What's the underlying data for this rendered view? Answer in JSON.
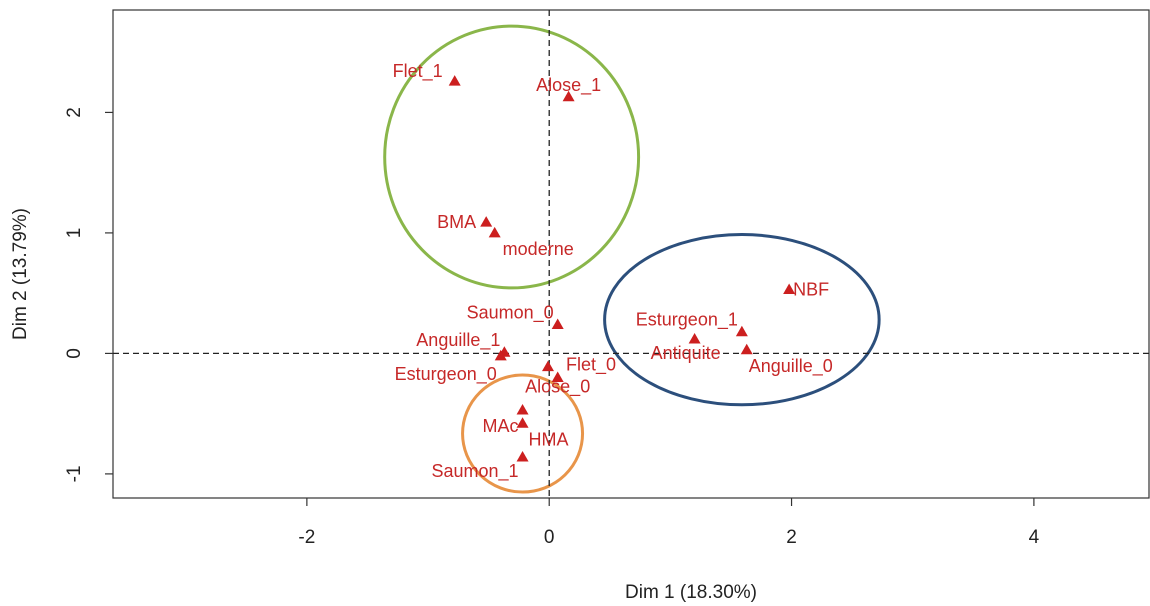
{
  "chart_data": {
    "type": "scatter",
    "xlabel": "Dim 1 (18.30%)",
    "ylabel": "Dim 2 (13.79%)",
    "xlim": [
      -3.6,
      4.95
    ],
    "ylim": [
      -1.2,
      2.85
    ],
    "xticks": [
      -2,
      0,
      2,
      4
    ],
    "yticks": [
      -1,
      0,
      1,
      2
    ],
    "reference_lines": {
      "x": 0,
      "y": 0,
      "style": "dashed"
    },
    "grid": false,
    "marker": "triangle",
    "marker_color": "#cc1f1f",
    "points": [
      {
        "label": "Flet_1",
        "x": -0.78,
        "y": 2.26
      },
      {
        "label": "Alose_1",
        "x": 0.16,
        "y": 2.13
      },
      {
        "label": "BMA",
        "x": -0.52,
        "y": 1.09
      },
      {
        "label": "moderne",
        "x": -0.45,
        "y": 1.0
      },
      {
        "label": "NBF",
        "x": 1.98,
        "y": 0.53
      },
      {
        "label": "Saumon_0",
        "x": 0.07,
        "y": 0.24
      },
      {
        "label": "Esturgeon_1",
        "x": 1.59,
        "y": 0.18
      },
      {
        "label": "Antiquite",
        "x": 1.2,
        "y": 0.12
      },
      {
        "label": "Anguille_0",
        "x": 1.63,
        "y": 0.03
      },
      {
        "label": "Anguille_1",
        "x": -0.37,
        "y": 0.01
      },
      {
        "label": "Esturgeon_0",
        "x": -0.4,
        "y": -0.02
      },
      {
        "label": "Flet_0",
        "x": -0.01,
        "y": -0.11
      },
      {
        "label": "Alose_0",
        "x": 0.07,
        "y": -0.2
      },
      {
        "label": "MAc",
        "x": -0.22,
        "y": -0.47
      },
      {
        "label": "HMA",
        "x": -0.22,
        "y": -0.58
      },
      {
        "label": "Saumon_1",
        "x": -0.22,
        "y": -0.86
      }
    ],
    "groups": [
      {
        "color": "#8ab64a",
        "members": [
          "Flet_1",
          "Alose_1",
          "BMA",
          "moderne"
        ]
      },
      {
        "color": "#2c4f7c",
        "members": [
          "NBF",
          "Esturgeon_1",
          "Antiquite",
          "Anguille_0"
        ]
      },
      {
        "color": "#e8954a",
        "members": [
          "MAc",
          "HMA",
          "Saumon_1"
        ]
      }
    ]
  }
}
